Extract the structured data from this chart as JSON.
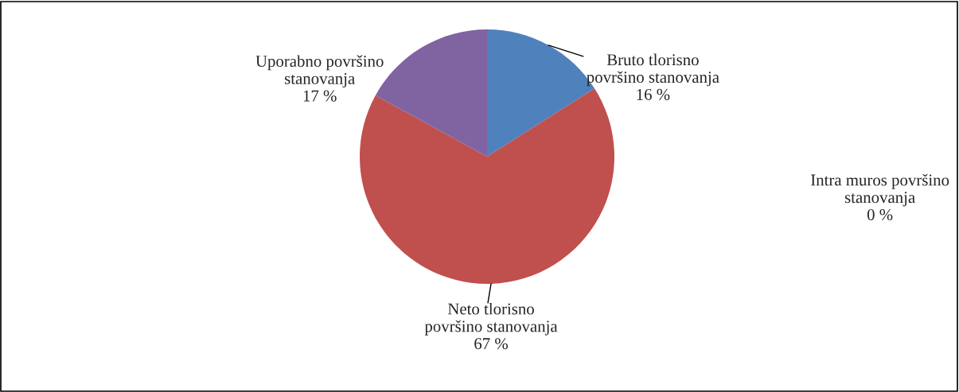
{
  "chart_data": {
    "type": "pie",
    "categories": [
      "Bruto tlorisno površino stanovanja",
      "Neto tlorisno površino stanovanja",
      "Intra muros površino stanovanja",
      "Uporabno površino stanovanja"
    ],
    "values": [
      16,
      67,
      0,
      17
    ],
    "colors": [
      "#4f81bd",
      "#c0504d",
      "#9bbb59",
      "#8064a2"
    ],
    "value_labels": [
      "16 %",
      "67 %",
      "0 %",
      "17 %"
    ]
  }
}
